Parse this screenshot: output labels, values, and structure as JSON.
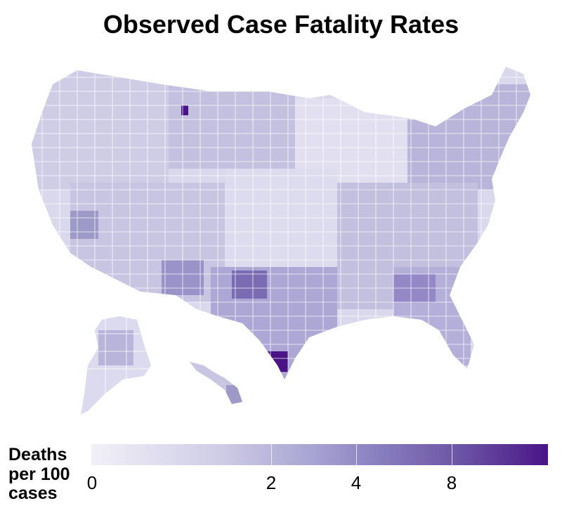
{
  "map": {
    "title": "Observed Case Fatality Rates",
    "legend": {
      "title": "Deaths per 100 cases",
      "ticks": [
        "0",
        "2",
        "4",
        "8"
      ],
      "colors": [
        "#f2f0f7",
        "#cbc9e2",
        "#9e9ac8",
        "#6a51a3",
        "#4a1486"
      ]
    },
    "regions": [
      {
        "name": "contiguous-us"
      },
      {
        "name": "alaska"
      },
      {
        "name": "hawaii"
      }
    ]
  }
}
